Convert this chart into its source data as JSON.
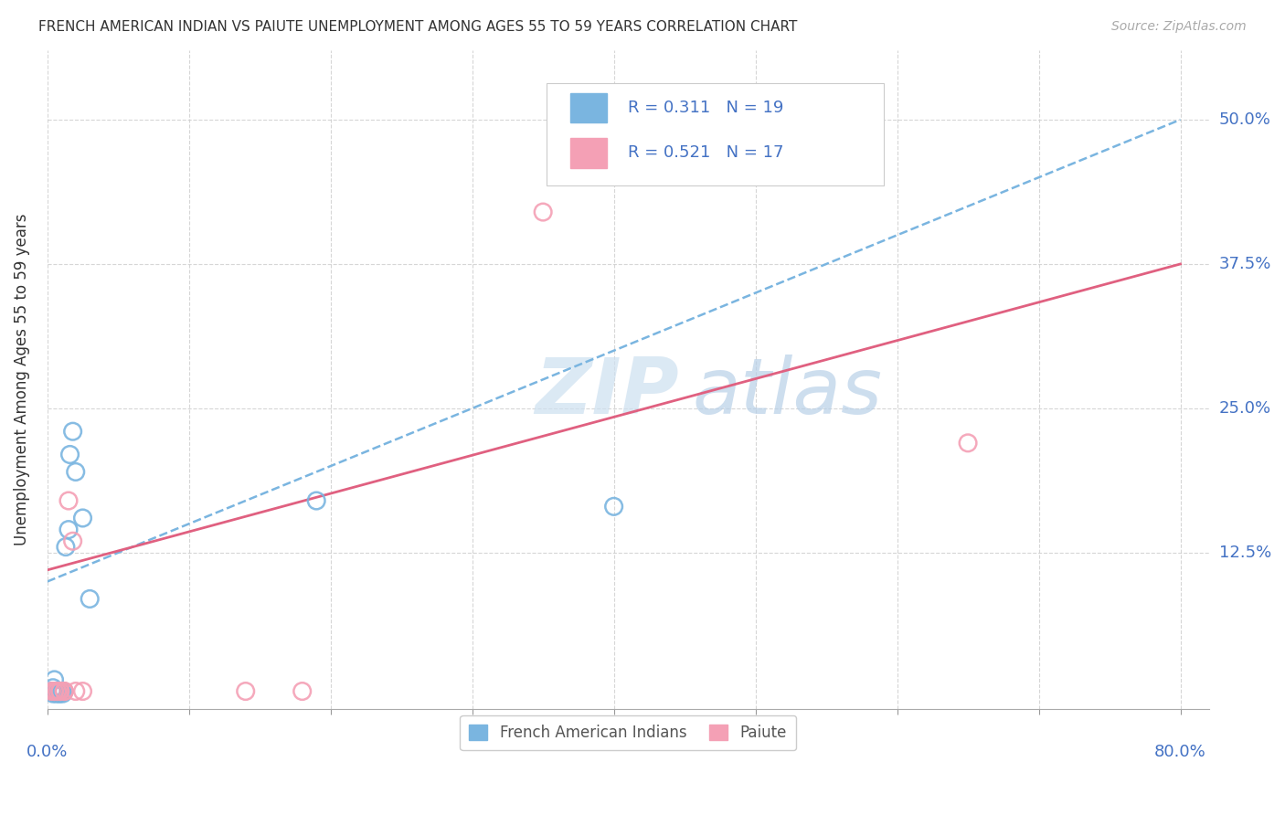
{
  "title": "FRENCH AMERICAN INDIAN VS PAIUTE UNEMPLOYMENT AMONG AGES 55 TO 59 YEARS CORRELATION CHART",
  "source": "Source: ZipAtlas.com",
  "ylabel": "Unemployment Among Ages 55 to 59 years",
  "ytick_labels": [
    "12.5%",
    "25.0%",
    "37.5%",
    "50.0%"
  ],
  "ytick_values": [
    0.125,
    0.25,
    0.375,
    0.5
  ],
  "legend_blue_label": "French American Indians",
  "legend_pink_label": "Paiute",
  "r_blue": "0.311",
  "n_blue": "19",
  "r_pink": "0.521",
  "n_pink": "17",
  "blue_color": "#7ab5e0",
  "pink_color": "#f4a0b5",
  "blue_dots_x": [
    0.003,
    0.004,
    0.006,
    0.007,
    0.008,
    0.009,
    0.01,
    0.011,
    0.013,
    0.015,
    0.016,
    0.018,
    0.02,
    0.025,
    0.03,
    0.19,
    0.4,
    0.004,
    0.005
  ],
  "blue_dots_y": [
    0.005,
    0.008,
    0.003,
    0.005,
    0.003,
    0.003,
    0.005,
    0.003,
    0.13,
    0.145,
    0.21,
    0.23,
    0.195,
    0.155,
    0.085,
    0.17,
    0.165,
    0.003,
    0.015
  ],
  "pink_dots_x": [
    0.003,
    0.005,
    0.007,
    0.009,
    0.012,
    0.015,
    0.018,
    0.02,
    0.025,
    0.14,
    0.18,
    0.35,
    0.65,
    0.005,
    0.007,
    0.009,
    0.012
  ],
  "pink_dots_y": [
    0.005,
    0.005,
    0.005,
    0.005,
    0.005,
    0.17,
    0.135,
    0.005,
    0.005,
    0.005,
    0.005,
    0.42,
    0.22,
    0.005,
    0.005,
    0.005,
    0.005
  ],
  "blue_line_x": [
    0.0,
    0.8
  ],
  "blue_line_y": [
    0.1,
    0.5
  ],
  "pink_line_x": [
    0.0,
    0.8
  ],
  "pink_line_y": [
    0.11,
    0.375
  ],
  "xlim": [
    0.0,
    0.82
  ],
  "ylim": [
    -0.01,
    0.56
  ],
  "xtick_positions": [
    0.0,
    0.1,
    0.2,
    0.3,
    0.4,
    0.5,
    0.6,
    0.7,
    0.8
  ],
  "watermark_text": "ZIPatlas",
  "title_fontsize": 11,
  "source_fontsize": 10,
  "tick_fontsize": 13,
  "ylabel_fontsize": 12
}
